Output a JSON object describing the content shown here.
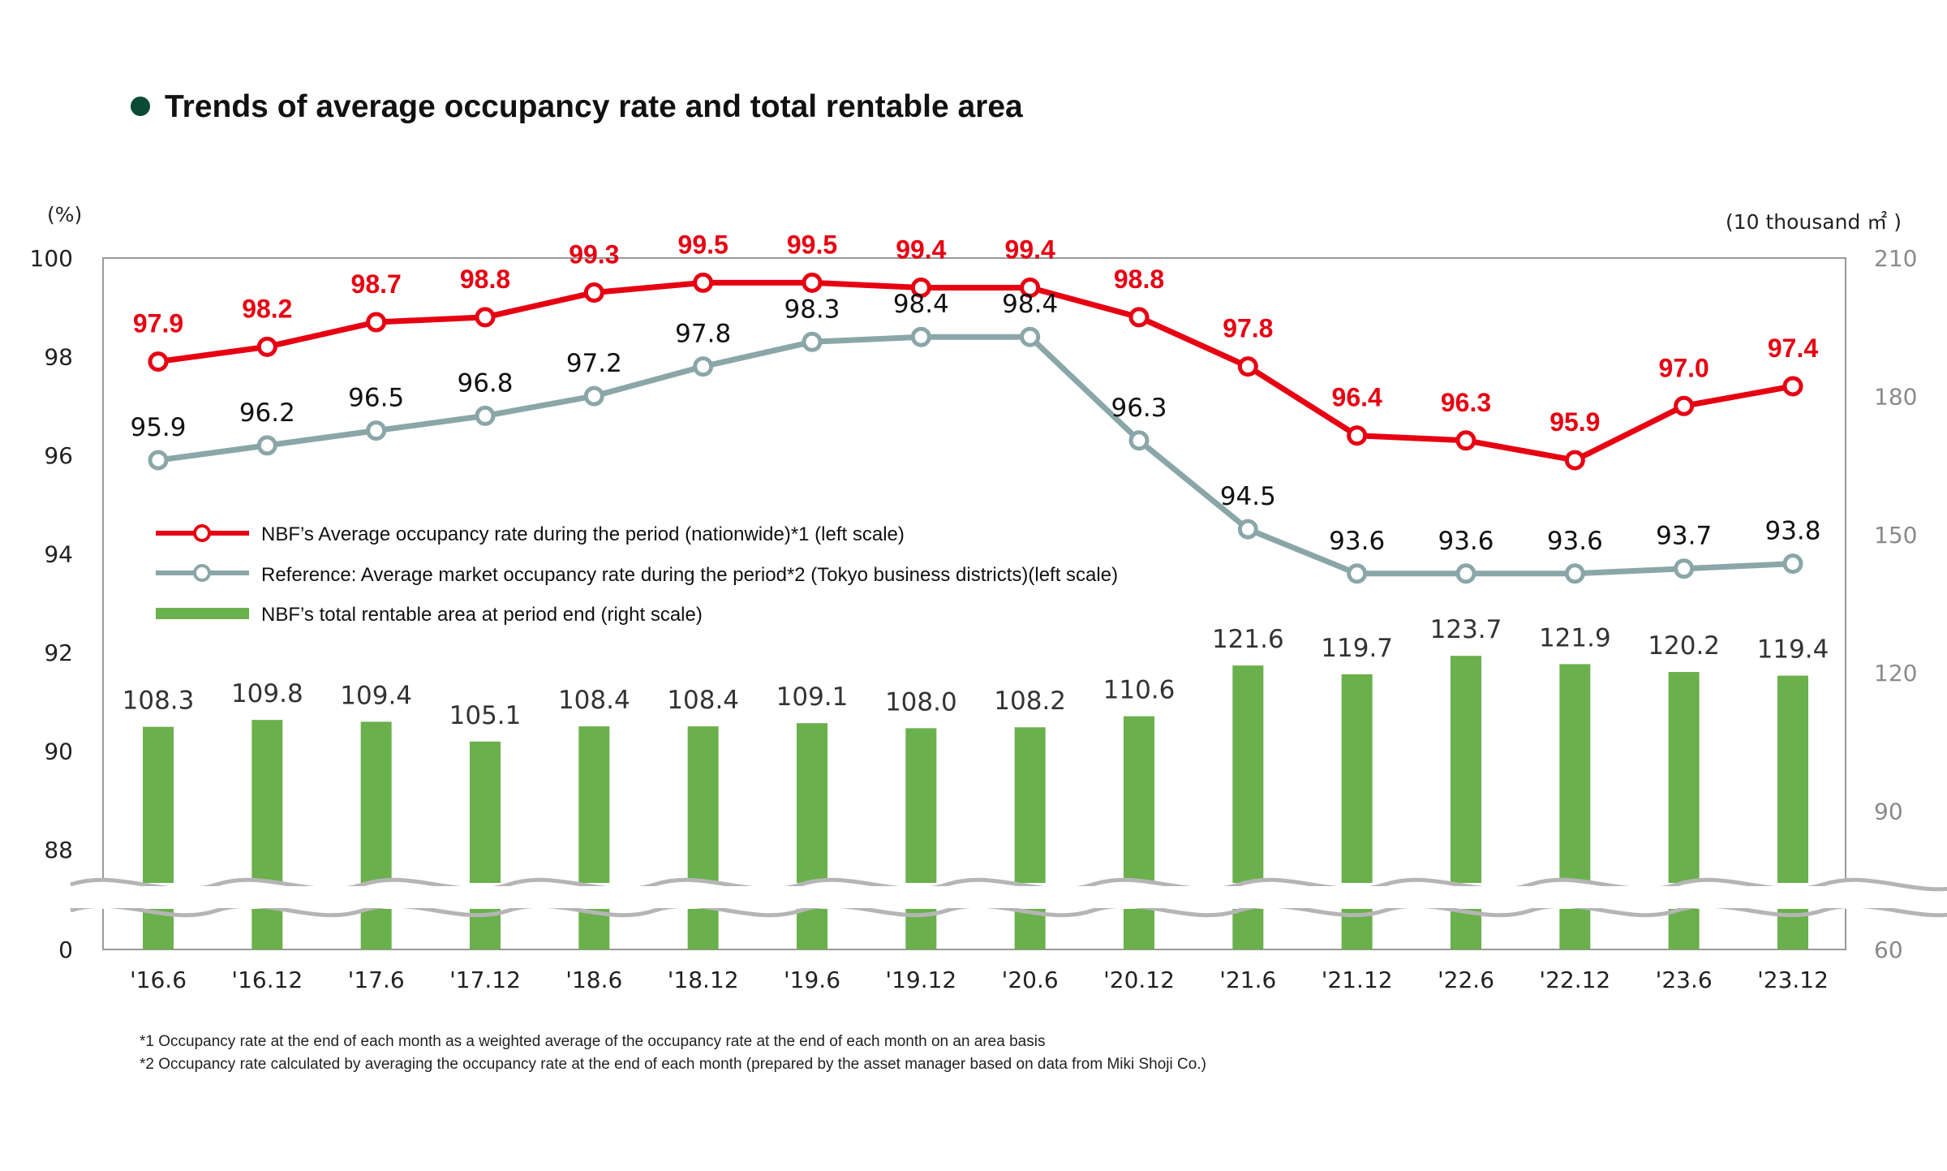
{
  "title": "Trends of average occupancy rate and total rentable area",
  "colors": {
    "bullet": "#0b4a35",
    "red": "#e60012",
    "gray": "#8aa6a8",
    "bar": "#6ab04c"
  },
  "axes": {
    "left_unit": "(%)",
    "right_unit": "(10 thousand ㎡ )",
    "left_ticks": [
      "100",
      "98",
      "96",
      "94",
      "92",
      "90",
      "88",
      "0"
    ],
    "right_ticks": [
      "210",
      "180",
      "150",
      "120",
      "90",
      "60"
    ]
  },
  "legend": {
    "red": "NBF’s Average occupancy rate during the period (nationwide)*1  (left scale)",
    "gray": "Reference: Average market occupancy rate during the period*2 (Tokyo business districts)(left scale)",
    "bar": "NBF’s total rentable area at period end (right scale)"
  },
  "notes": [
    "*1 Occupancy rate at the end of each month as a weighted average of the occupancy rate at the end of each month on an area basis",
    "*2 Occupancy rate calculated by averaging the occupancy rate at the end of each month (prepared by the asset manager based on data from Miki Shoji Co.)"
  ],
  "chart_data": {
    "type": "bar+line",
    "title": "Trends of average occupancy rate and total rentable area",
    "categories": [
      "'16.6",
      "'16.12",
      "'17.6",
      "'17.12",
      "'18.6",
      "'18.12",
      "'19.6",
      "'19.12",
      "'20.6",
      "'20.12",
      "'21.6",
      "'21.12",
      "'22.6",
      "'22.12",
      "'23.6",
      "'23.12"
    ],
    "left_axis": {
      "unit": "(%)",
      "range": [
        88,
        100
      ],
      "broken": true,
      "bottom_label": 0
    },
    "right_axis": {
      "unit": "(10 thousand ㎡ )",
      "range": [
        60,
        210
      ],
      "broken": true
    },
    "series": [
      {
        "name": "NBF’s Average occupancy rate during the period (nationwide)*1  (left scale)",
        "type": "line",
        "axis": "left",
        "color": "#e60012",
        "values": [
          97.9,
          98.2,
          98.7,
          98.8,
          99.3,
          99.5,
          99.5,
          99.4,
          99.4,
          98.8,
          97.8,
          96.4,
          96.3,
          95.9,
          97.0,
          97.4
        ],
        "labels": [
          "97.9",
          "98.2",
          "98.7",
          "98.8",
          "99.3",
          "99.5",
          "99.5",
          "99.4",
          "99.4",
          "98.8",
          "97.8",
          "96.4",
          "96.3",
          "95.9",
          "97.0",
          "97.4"
        ]
      },
      {
        "name": "Reference: Average market occupancy rate during the period*2 (Tokyo business districts)(left scale)",
        "type": "line",
        "axis": "left",
        "color": "#8aa6a8",
        "values": [
          95.9,
          96.2,
          96.5,
          96.8,
          97.2,
          97.8,
          98.3,
          98.4,
          98.4,
          96.3,
          94.5,
          93.6,
          93.6,
          93.6,
          93.7,
          93.8
        ],
        "labels": [
          "95.9",
          "96.2",
          "96.5",
          "96.8",
          "97.2",
          "97.8",
          "98.3",
          "98.4",
          "98.4",
          "96.3",
          "94.5",
          "93.6",
          "93.6",
          "93.6",
          "93.7",
          "93.8"
        ]
      },
      {
        "name": "NBF’s total rentable area at period end (right scale)",
        "type": "bar",
        "axis": "right",
        "color": "#6ab04c",
        "values": [
          108.3,
          109.8,
          109.4,
          105.1,
          108.4,
          108.4,
          109.1,
          108.0,
          108.2,
          110.6,
          121.6,
          119.7,
          123.7,
          121.9,
          120.2,
          119.4
        ],
        "labels": [
          "108.3",
          "109.8",
          "109.4",
          "105.1",
          "108.4",
          "108.4",
          "109.1",
          "108.0",
          "108.2",
          "110.6",
          "121.6",
          "119.7",
          "123.7",
          "121.9",
          "120.2",
          "119.4"
        ]
      }
    ],
    "grid": false,
    "legend_position": "center-left"
  }
}
